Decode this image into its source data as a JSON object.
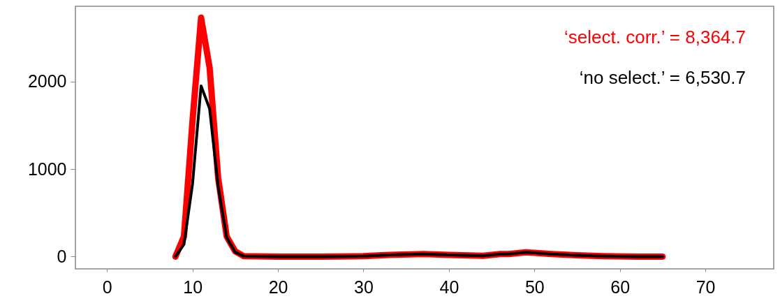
{
  "chart_data": {
    "type": "line",
    "x": [
      8,
      9,
      10,
      11,
      12,
      13,
      14,
      15,
      16,
      20,
      25,
      30,
      33,
      37,
      40,
      44,
      46,
      47,
      49,
      52,
      55,
      58,
      62,
      65
    ],
    "series": [
      {
        "name": "‘select. corr.’ = 8,364.7",
        "color": "#ff0000",
        "values": [
          0,
          230,
          1550,
          2730,
          2160,
          900,
          230,
          60,
          5,
          0,
          0,
          5,
          20,
          30,
          20,
          10,
          30,
          30,
          50,
          30,
          15,
          5,
          0,
          0
        ]
      },
      {
        "name": "‘no select.’ = 6,530.7",
        "color": "#000000",
        "values": [
          0,
          140,
          830,
          1950,
          1690,
          800,
          220,
          50,
          5,
          0,
          0,
          5,
          20,
          30,
          20,
          10,
          30,
          30,
          50,
          30,
          15,
          5,
          0,
          0
        ]
      }
    ],
    "xlim": [
      -3.7,
      78
    ],
    "xticks": [
      0,
      10,
      20,
      30,
      40,
      50,
      60,
      70
    ],
    "ylim": [
      -140,
      2860
    ],
    "yticks": [
      0,
      1000,
      2000
    ],
    "legend": "top right",
    "grid": false,
    "marker": "none",
    "line_style": "solid"
  }
}
